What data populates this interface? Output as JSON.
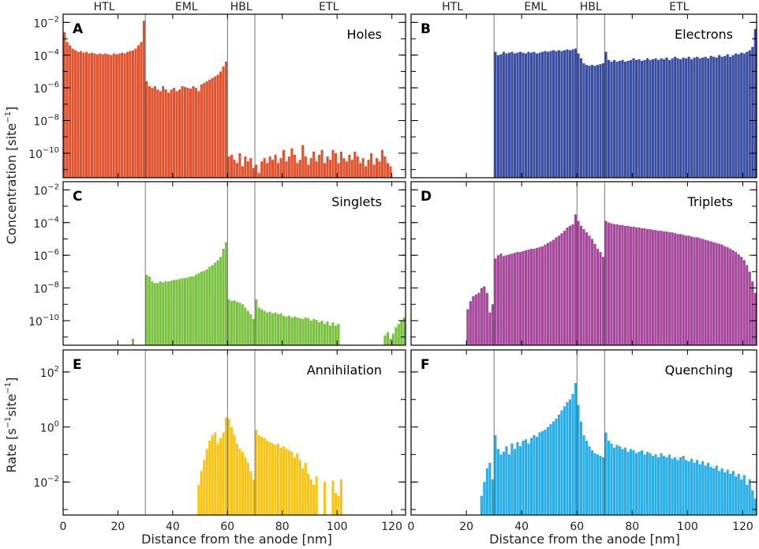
{
  "figure": {
    "top_labels": [
      "HTL",
      "EML",
      "HBL",
      "ETL"
    ],
    "top_label_centers_nm": [
      15,
      45,
      65,
      97
    ],
    "boundaries_nm": [
      30,
      60,
      70
    ],
    "ylabel_top": "Concentration [site",
    "ylabel_top_sup": "−1",
    "ylabel_top_end": "]",
    "ylabel_bottom": "Rate [s",
    "ylabel_bottom_sup1": "−1",
    "ylabel_bottom_mid": "site",
    "ylabel_bottom_sup2": "−1",
    "ylabel_bottom_end": "]",
    "xlabel": "Distance from the anode [nm]",
    "x_ticks": [
      0,
      20,
      40,
      60,
      80,
      100,
      120
    ],
    "x_range": [
      0,
      125
    ]
  },
  "chart_data": [
    {
      "type": "bar",
      "letter": "A",
      "title": "Holes",
      "color": "#e0532f",
      "x_range": [
        0,
        125
      ],
      "y_log_range": [
        -11.5,
        -1.5
      ],
      "y_ticks": [
        -10,
        -8,
        -6,
        -4,
        -2
      ],
      "boundaries": [
        30,
        60,
        70
      ],
      "segments": [
        {
          "x0": 0.5,
          "x1": 29.5,
          "logs": [
            -2.6,
            -3.2,
            -3.4,
            -3.6,
            -3.7,
            -3.8,
            -3.75,
            -3.85,
            -3.8,
            -3.9,
            -3.85,
            -3.9,
            -3.95,
            -3.9,
            -3.95,
            -3.9,
            -3.95,
            -4.0,
            -3.9,
            -3.95,
            -3.9,
            -3.85,
            -3.9,
            -3.8,
            -3.75,
            -3.7,
            -3.6,
            -3.4,
            -3.2,
            -1.9
          ]
        },
        {
          "x0": 30.5,
          "x1": 59.5,
          "logs": [
            -5.6,
            -5.9,
            -6.0,
            -5.9,
            -6.1,
            -6.2,
            -5.9,
            -6.1,
            -6.3,
            -6.1,
            -6.0,
            -6.2,
            -6.1,
            -5.9,
            -5.95,
            -6.0,
            -6.05,
            -5.9,
            -6.0,
            -6.2,
            -5.8,
            -5.7,
            -5.6,
            -5.5,
            -5.4,
            -5.3,
            -5.2,
            -5.0,
            -4.7,
            -4.4
          ]
        },
        {
          "x0": 60.5,
          "x1": 119.5,
          "logs": [
            -10.2,
            -10.1,
            -10.4,
            -10.6,
            -10.0,
            -10.8,
            -10.2,
            -10.5,
            -10.3,
            -10.9,
            -10.7,
            -11.2,
            -10.5,
            -10.3,
            -10.6,
            -10.2,
            -10.4,
            -10.1,
            -10.6,
            -10.3,
            -9.8,
            -10.5,
            -10.2,
            -9.7,
            -10.1,
            -10.6,
            -10.4,
            -9.5,
            -10.2,
            -10.7,
            -10.3,
            -9.9,
            -10.5,
            -10.1,
            -9.8,
            -10.6,
            -10.2,
            -10.4,
            -9.8,
            -10.0,
            -10.6,
            -9.9,
            -10.3,
            -10.5,
            -10.1,
            -10.4,
            -9.9,
            -10.2,
            -10.6,
            -10.3,
            -10.8,
            -10.4,
            -10.0,
            -10.7,
            -10.3,
            -10.5,
            -9.8,
            -10.2,
            -10.6,
            -10.8
          ]
        }
      ]
    },
    {
      "type": "bar",
      "letter": "B",
      "title": "Electrons",
      "color": "#3a4ea1",
      "x_range": [
        0,
        125
      ],
      "y_log_range": [
        -11.5,
        -1.5
      ],
      "y_ticks": [
        -10,
        -8,
        -6,
        -4,
        -2
      ],
      "boundaries": [
        30,
        60,
        70
      ],
      "segments": [
        {
          "x0": 30.5,
          "x1": 59.5,
          "logs": [
            -3.8,
            -4.0,
            -3.95,
            -3.8,
            -3.9,
            -3.85,
            -3.8,
            -3.9,
            -3.85,
            -3.8,
            -3.85,
            -3.9,
            -3.8,
            -3.85,
            -3.8,
            -3.9,
            -3.85,
            -3.8,
            -3.75,
            -3.8,
            -3.75,
            -3.7,
            -3.75,
            -3.7,
            -3.75,
            -3.7,
            -3.65,
            -3.7,
            -3.65,
            -3.6
          ]
        },
        {
          "x0": 60.5,
          "x1": 69.5,
          "logs": [
            -3.9,
            -4.2,
            -4.5,
            -4.6,
            -4.65,
            -4.6,
            -4.65,
            -4.6,
            -4.55,
            -4.5
          ]
        },
        {
          "x0": 70.5,
          "x1": 124.5,
          "logs": [
            -3.8,
            -4.3,
            -4.4,
            -4.3,
            -4.4,
            -4.35,
            -4.3,
            -4.4,
            -4.35,
            -4.3,
            -4.2,
            -4.3,
            -4.25,
            -4.35,
            -4.3,
            -4.2,
            -4.3,
            -4.25,
            -4.2,
            -4.3,
            -4.2,
            -4.25,
            -4.15,
            -4.3,
            -4.2,
            -4.1,
            -4.2,
            -4.25,
            -4.15,
            -4.2,
            -4.1,
            -4.25,
            -4.15,
            -4.1,
            -4.2,
            -4.15,
            -4.1,
            -4.2,
            -4.05,
            -4.1,
            -4.15,
            -4.0,
            -4.1,
            -4.05,
            -3.95,
            -4.1,
            -4.0,
            -3.9,
            -3.95,
            -3.85,
            -3.9,
            -3.8,
            -3.7,
            -3.5,
            -2.4
          ]
        }
      ]
    },
    {
      "type": "bar",
      "letter": "C",
      "title": "Singlets",
      "color": "#7cc242",
      "x_range": [
        0,
        125
      ],
      "y_log_range": [
        -11.5,
        -1.5
      ],
      "y_ticks": [
        -10,
        -8,
        -6,
        -4,
        -2
      ],
      "boundaries": [
        30,
        60,
        70
      ],
      "segments": [
        {
          "x0": 25.5,
          "x1": 25.5,
          "logs": [
            -11.1
          ]
        },
        {
          "x0": 30.5,
          "x1": 59.5,
          "logs": [
            -7.2,
            -7.3,
            -7.6,
            -7.7,
            -7.7,
            -7.6,
            -7.65,
            -7.6,
            -7.6,
            -7.55,
            -7.5,
            -7.5,
            -7.45,
            -7.4,
            -7.4,
            -7.35,
            -7.3,
            -7.3,
            -7.2,
            -7.1,
            -7.0,
            -6.95,
            -6.85,
            -6.7,
            -6.6,
            -6.45,
            -6.3,
            -6.1,
            -5.6,
            -5.2
          ]
        },
        {
          "x0": 60.5,
          "x1": 69.5,
          "logs": [
            -8.7,
            -8.8,
            -8.75,
            -8.85,
            -8.9,
            -9.0,
            -9.2,
            -9.4,
            -9.6,
            -9.9
          ]
        },
        {
          "x0": 70.5,
          "x1": 100.5,
          "logs": [
            -8.7,
            -9.2,
            -9.3,
            -9.4,
            -9.5,
            -9.45,
            -9.55,
            -9.5,
            -9.6,
            -9.55,
            -9.7,
            -9.75,
            -9.7,
            -9.8,
            -9.75,
            -9.8,
            -9.85,
            -9.9,
            -9.8,
            -9.85,
            -10.0,
            -9.9,
            -9.95,
            -10.1,
            -10.0,
            -10.2,
            -10.05,
            -10.3,
            -10.1,
            -10.3,
            -10.2
          ]
        },
        {
          "x0": 117.5,
          "x1": 124.5,
          "logs": [
            -10.9,
            -10.7,
            -11.1,
            -10.8,
            -10.4,
            -10.2,
            -10.0,
            -9.8
          ]
        }
      ]
    },
    {
      "type": "bar",
      "letter": "D",
      "title": "Triplets",
      "color": "#a5479b",
      "x_range": [
        0,
        125
      ],
      "y_log_range": [
        -11.5,
        -1.5
      ],
      "y_ticks": [
        -10,
        -8,
        -6,
        -4,
        -2
      ],
      "boundaries": [
        30,
        60,
        70
      ],
      "segments": [
        {
          "x0": 20.5,
          "x1": 29.5,
          "logs": [
            -9.3,
            -8.8,
            -8.5,
            -8.4,
            -8.3,
            -8.0,
            -7.9,
            -8.3,
            -9.5,
            -9.0
          ]
        },
        {
          "x0": 30.5,
          "x1": 59.5,
          "logs": [
            -6.2,
            -6.0,
            -5.9,
            -6.05,
            -6.0,
            -5.95,
            -5.9,
            -5.85,
            -5.8,
            -5.8,
            -5.75,
            -5.7,
            -5.65,
            -5.6,
            -5.6,
            -5.55,
            -5.5,
            -5.45,
            -5.35,
            -5.25,
            -5.15,
            -5.05,
            -4.9,
            -4.8,
            -4.65,
            -4.5,
            -4.3,
            -4.2,
            -4.1,
            -3.5
          ]
        },
        {
          "x0": 60.5,
          "x1": 69.5,
          "logs": [
            -3.9,
            -4.2,
            -4.4,
            -4.6,
            -4.8,
            -5.0,
            -5.3,
            -5.6,
            -5.8,
            -6.1
          ]
        },
        {
          "x0": 70.5,
          "x1": 124.5,
          "logs": [
            -3.9,
            -4.0,
            -4.05,
            -4.1,
            -4.1,
            -4.15,
            -4.15,
            -4.2,
            -4.2,
            -4.25,
            -4.25,
            -4.3,
            -4.3,
            -4.35,
            -4.35,
            -4.4,
            -4.4,
            -4.45,
            -4.45,
            -4.5,
            -4.5,
            -4.55,
            -4.55,
            -4.6,
            -4.6,
            -4.65,
            -4.7,
            -4.7,
            -4.75,
            -4.8,
            -4.8,
            -4.85,
            -4.9,
            -4.9,
            -4.95,
            -5.0,
            -5.05,
            -5.1,
            -5.15,
            -5.2,
            -5.25,
            -5.3,
            -5.35,
            -5.45,
            -5.5,
            -5.6,
            -5.7,
            -5.8,
            -5.95,
            -6.1,
            -6.3,
            -6.6,
            -7.0,
            -7.6,
            -8.3
          ]
        }
      ]
    },
    {
      "type": "bar",
      "letter": "E",
      "title": "Annihilation",
      "color": "#f5c518",
      "x_range": [
        0,
        125
      ],
      "y_log_range": [
        -3.2,
        2.8
      ],
      "y_ticks": [
        -2,
        0,
        2
      ],
      "boundaries": [
        30,
        60,
        70
      ],
      "segments": [
        {
          "x0": 49.5,
          "x1": 59.5,
          "logs": [
            -2.1,
            -1.6,
            -1.2,
            -0.8,
            -0.5,
            -0.3,
            -0.2,
            -0.6,
            -0.4,
            -0.2,
            0.35
          ]
        },
        {
          "x0": 60.5,
          "x1": 69.5,
          "logs": [
            0.3,
            0.0,
            -0.3,
            -0.6,
            -0.8,
            -0.9,
            -1.1,
            -1.3,
            -1.6,
            -1.9
          ]
        },
        {
          "x0": 70.5,
          "x1": 92.5,
          "logs": [
            -0.1,
            -0.3,
            -0.35,
            -0.4,
            -0.5,
            -0.55,
            -0.6,
            -0.65,
            -0.6,
            -0.75,
            -0.7,
            -0.8,
            -0.85,
            -0.9,
            -1.1,
            -0.95,
            -1.2,
            -1.5,
            -1.3,
            -1.7,
            -1.9,
            -2.1,
            -1.8
          ]
        },
        {
          "x0": 95.5,
          "x1": 95.5,
          "logs": [
            -2.0
          ]
        },
        {
          "x0": 98.5,
          "x1": 101.5,
          "logs": [
            -1.95,
            -2.4,
            -2.5,
            -1.9
          ]
        }
      ]
    },
    {
      "type": "bar",
      "letter": "F",
      "title": "Quenching",
      "color": "#29aee5",
      "x_range": [
        0,
        125
      ],
      "y_log_range": [
        -3.2,
        2.8
      ],
      "y_ticks": [
        -2,
        0,
        2
      ],
      "boundaries": [
        30,
        60,
        70
      ],
      "segments": [
        {
          "x0": 25.5,
          "x1": 29.5,
          "logs": [
            -2.5,
            -2.0,
            -1.5,
            -1.3,
            -1.9
          ]
        },
        {
          "x0": 30.5,
          "x1": 59.5,
          "logs": [
            -0.3,
            -0.8,
            -1.0,
            -0.9,
            -0.7,
            -1.0,
            -0.6,
            -0.8,
            -0.55,
            -0.7,
            -0.5,
            -0.45,
            -0.6,
            -0.4,
            -0.3,
            -0.35,
            -0.2,
            -0.15,
            -0.1,
            0.0,
            0.1,
            0.2,
            0.3,
            0.45,
            0.6,
            0.75,
            0.9,
            1.0,
            1.2,
            1.6
          ]
        },
        {
          "x0": 60.5,
          "x1": 69.5,
          "logs": [
            0.8,
            0.2,
            -0.3,
            -0.5,
            -0.7,
            -0.85,
            -0.95,
            -1.0,
            -1.05,
            -1.1
          ]
        },
        {
          "x0": 70.5,
          "x1": 124.5,
          "logs": [
            -0.2,
            -0.5,
            -0.6,
            -0.75,
            -0.65,
            -0.7,
            -0.8,
            -0.75,
            -0.9,
            -0.8,
            -0.85,
            -0.95,
            -0.9,
            -0.85,
            -1.0,
            -0.9,
            -0.95,
            -1.05,
            -1.0,
            -1.1,
            -0.95,
            -1.05,
            -1.1,
            -1.0,
            -1.15,
            -1.1,
            -1.2,
            -1.1,
            -1.05,
            -1.2,
            -1.25,
            -1.15,
            -1.3,
            -1.2,
            -1.35,
            -1.25,
            -1.4,
            -1.3,
            -1.45,
            -1.5,
            -1.4,
            -1.6,
            -1.5,
            -1.65,
            -1.55,
            -1.7,
            -1.6,
            -1.8,
            -1.7,
            -1.9,
            -1.75,
            -2.1,
            -1.9,
            -2.3,
            -2.6
          ]
        }
      ]
    }
  ]
}
